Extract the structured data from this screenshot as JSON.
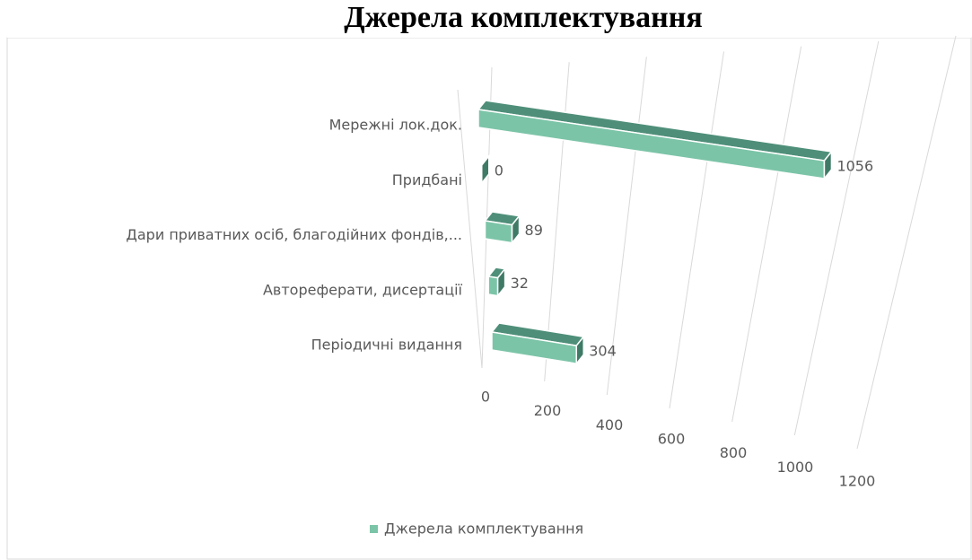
{
  "chart_data": {
    "type": "bar3d",
    "title": "Джерела комплектування",
    "categories": [
      "Мережні лок.док.",
      "Придбані",
      "Дари приватних осіб, благодійних фондів,...",
      "Автореферати, дисертації",
      "Періодичні видання"
    ],
    "series": [
      {
        "name": "Джерела комплектування",
        "color": "#7cc4a8",
        "values": [
          1056,
          0,
          89,
          32,
          304
        ]
      }
    ],
    "xlim": [
      0,
      1200
    ],
    "xticks": [
      0,
      200,
      400,
      600,
      800,
      1000,
      1200
    ],
    "grid": true,
    "legend": "bottom"
  }
}
